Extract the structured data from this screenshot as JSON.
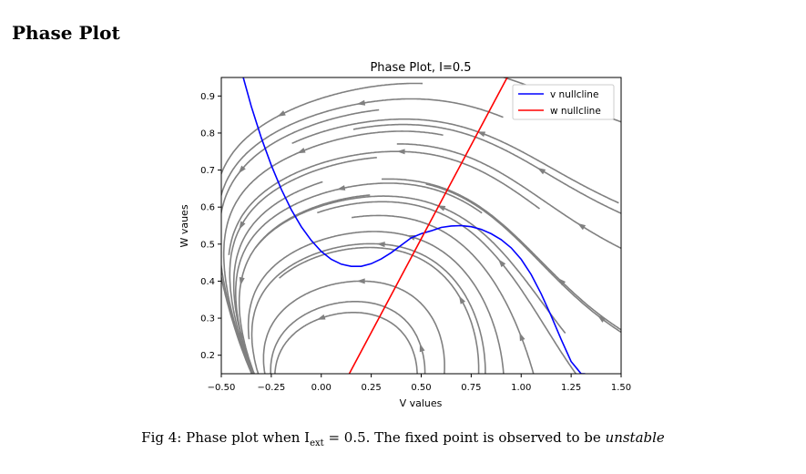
{
  "section": {
    "title": "Phase Plot"
  },
  "caption": {
    "prefix": "Fig 4: Phase plot when I",
    "subscript": "ext",
    "middle": " = 0.5. The fixed point is observed to be ",
    "emphasis": "unstable"
  },
  "chart_data": {
    "type": "line",
    "title": "Phase Plot, I=0.5",
    "xlabel": "V values",
    "ylabel": "W vaues",
    "xlim": [
      -0.5,
      1.5
    ],
    "ylim": [
      0.15,
      0.95
    ],
    "x_ticks": [
      -0.5,
      -0.25,
      0.0,
      0.25,
      0.5,
      0.75,
      1.0,
      1.25,
      1.5
    ],
    "x_tick_labels": [
      "−0.50",
      "−0.25",
      "0.00",
      "0.25",
      "0.50",
      "0.75",
      "1.00",
      "1.25",
      "1.50"
    ],
    "y_ticks": [
      0.2,
      0.3,
      0.4,
      0.5,
      0.6,
      0.7,
      0.8,
      0.9
    ],
    "y_tick_labels": [
      "0.2",
      "0.3",
      "0.4",
      "0.5",
      "0.6",
      "0.7",
      "0.8",
      "0.9"
    ],
    "grid": false,
    "legend_position": "top-right",
    "series": [
      {
        "name": "v nullcline",
        "color": "#0000ff",
        "x": [
          -0.39,
          -0.35,
          -0.3,
          -0.25,
          -0.2,
          -0.15,
          -0.1,
          -0.05,
          0.0,
          0.05,
          0.1,
          0.15,
          0.2,
          0.25,
          0.3,
          0.35,
          0.4,
          0.45,
          0.5,
          0.55,
          0.6,
          0.65,
          0.7,
          0.75,
          0.8,
          0.85,
          0.9,
          0.95,
          1.0,
          1.05,
          1.1,
          1.15,
          1.2,
          1.25,
          1.3,
          1.32
        ],
        "y": [
          0.95,
          0.872,
          0.787,
          0.713,
          0.648,
          0.593,
          0.547,
          0.51,
          0.48,
          0.459,
          0.446,
          0.44,
          0.44,
          0.447,
          0.46,
          0.477,
          0.497,
          0.517,
          0.528,
          0.536,
          0.545,
          0.549,
          0.55,
          0.547,
          0.54,
          0.528,
          0.512,
          0.49,
          0.459,
          0.418,
          0.366,
          0.306,
          0.243,
          0.183,
          0.15,
          0.15
        ]
      },
      {
        "name": "w nullcline",
        "color": "#ff0000",
        "x": [
          0.14,
          0.93
        ],
        "y": [
          0.15,
          0.95
        ]
      }
    ],
    "streamline_color": "#808080"
  }
}
